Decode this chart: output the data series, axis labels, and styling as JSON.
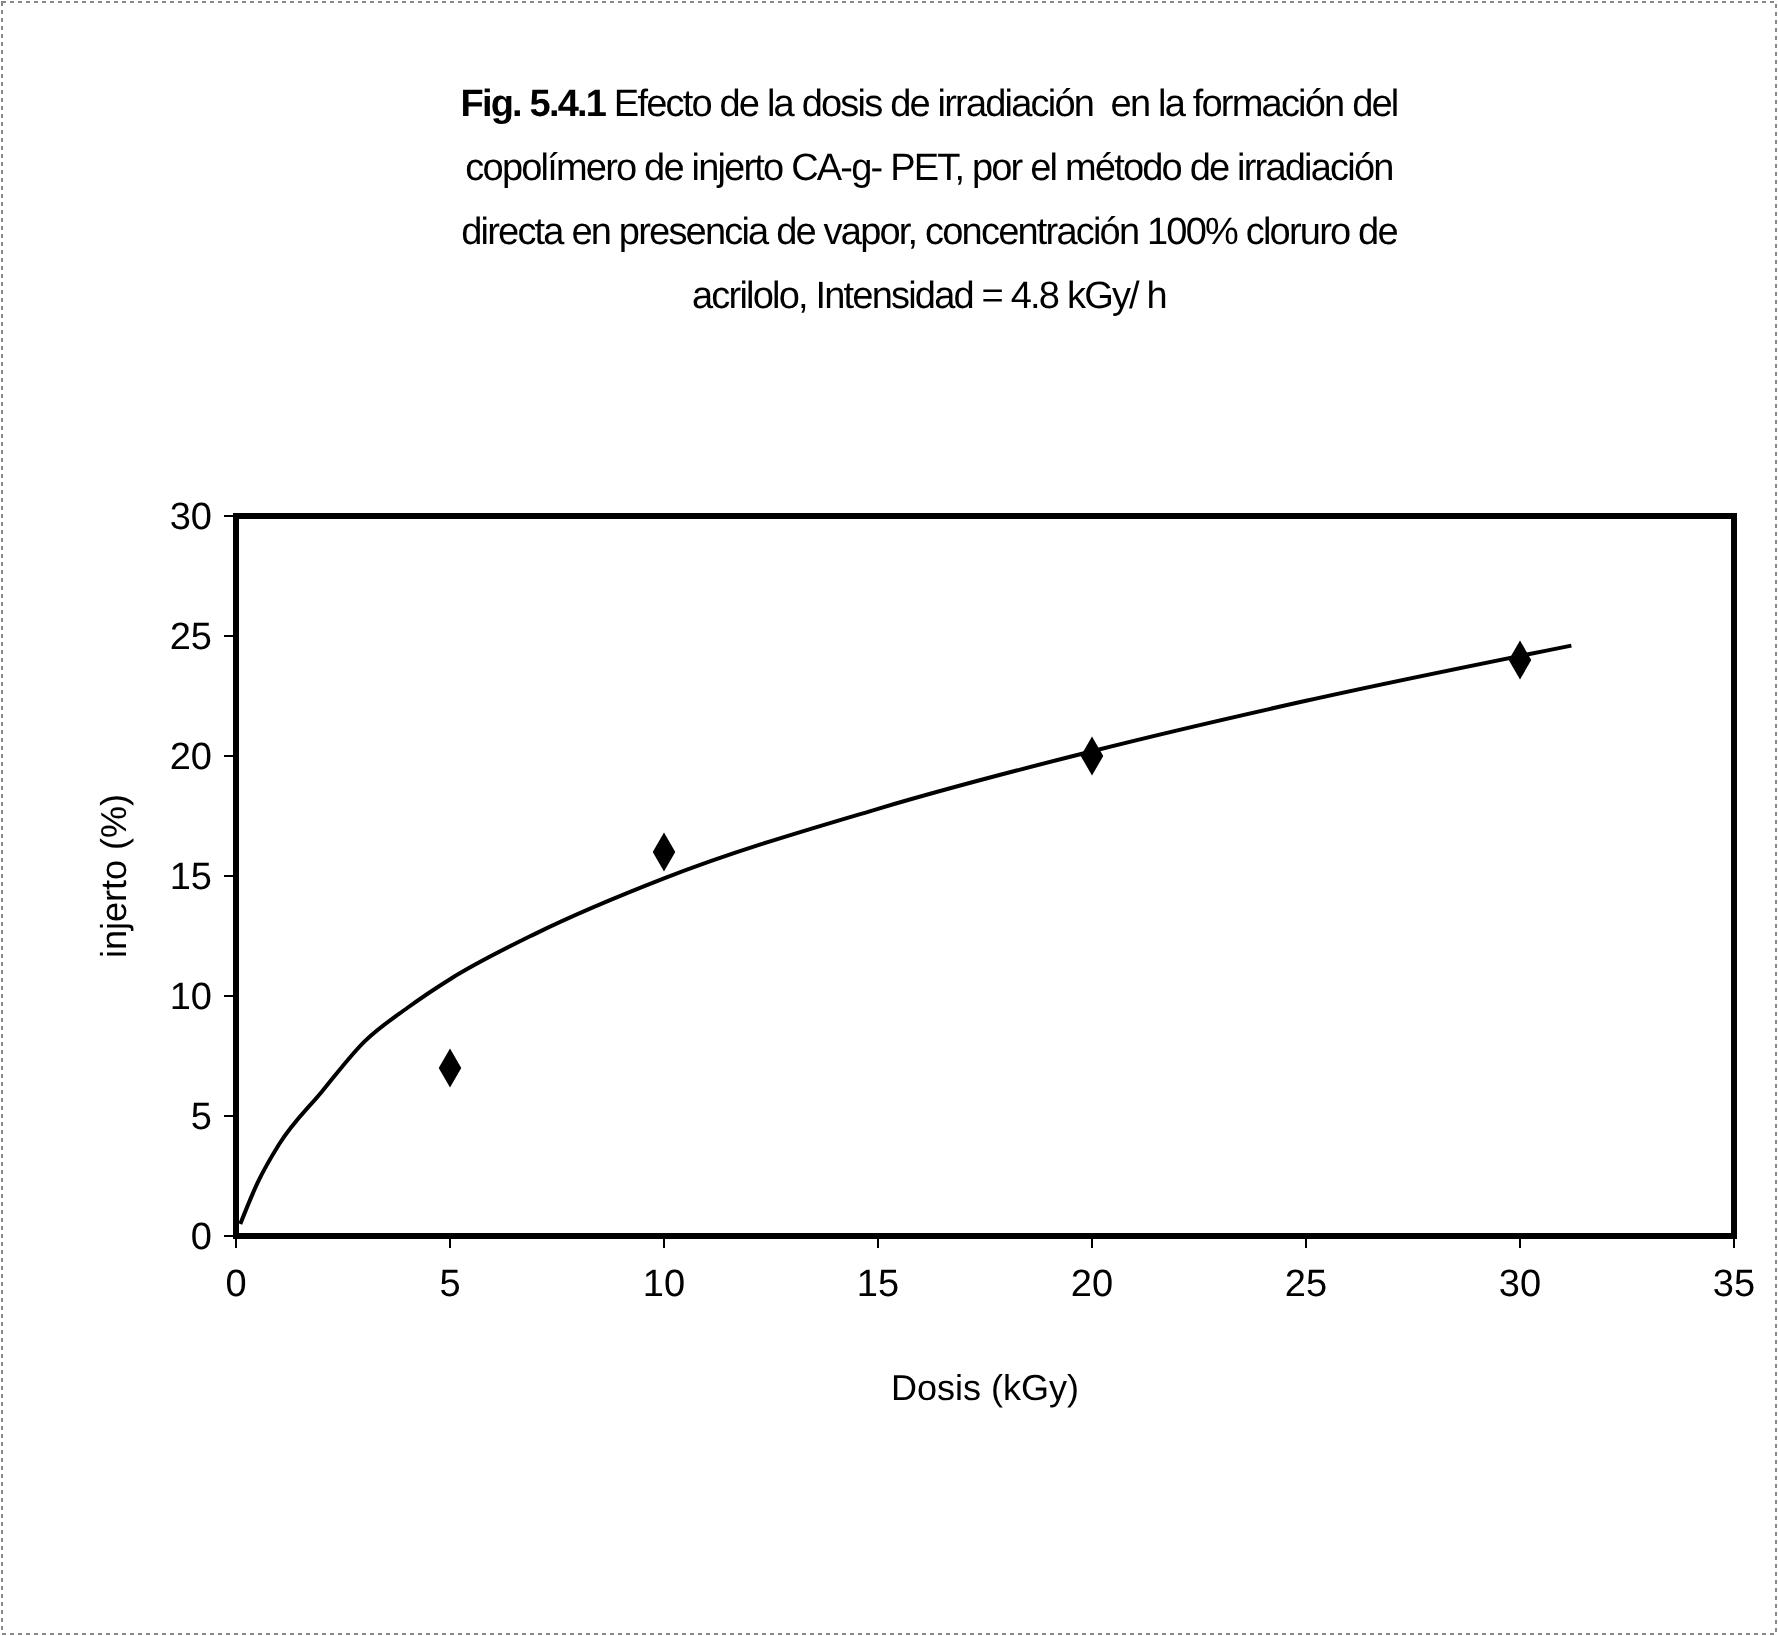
{
  "chart_data": {
    "type": "scatter",
    "title": "Fig. 5.4.1 Efecto de la dosis de irradiación  en la formación del copolímero de injerto CA-g- PET, por el método de irradiación directa en presencia de vapor, concentración 100% cloruro de acrilolo, Intensidad = 4.8 kGy/ h",
    "xlabel": "Dosis (kGy)",
    "ylabel": "injerto (%)",
    "x": [
      5,
      10,
      20,
      30
    ],
    "series": [
      {
        "color": "#000000",
        "marker": "diamond",
        "values": [
          7,
          16,
          20,
          24
        ]
      },
      {
        "type": "line",
        "color": "#000000",
        "marker": "none",
        "x": [
          0.1,
          0.5,
          1,
          2,
          3,
          4,
          5,
          7,
          10,
          15,
          20,
          25,
          31.2
        ],
        "values": [
          0.5,
          2.2,
          3.8,
          6.0,
          8.1,
          9.5,
          10.7,
          12.6,
          14.9,
          17.8,
          20.2,
          22.3,
          24.6
        ]
      }
    ],
    "xlim": [
      0,
      35
    ],
    "xticks": [
      0,
      5,
      10,
      15,
      20,
      25,
      30,
      35
    ],
    "ylim": [
      0,
      30
    ],
    "yticks": [
      0,
      5,
      10,
      15,
      20,
      25,
      30
    ],
    "grid": false
  }
}
